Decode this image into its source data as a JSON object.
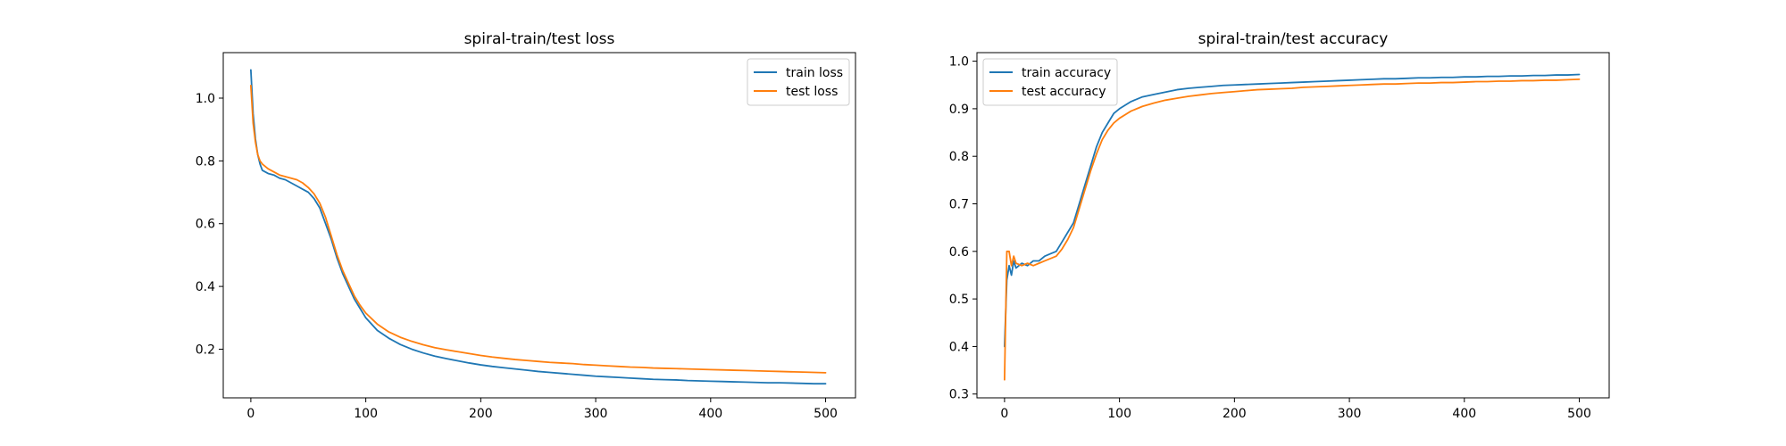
{
  "colors": {
    "train": "#1f77b4",
    "test": "#ff7f0e"
  },
  "chart_data": [
    {
      "type": "line",
      "title": "spiral-train/test loss",
      "xlabel": "",
      "ylabel": "",
      "xlim": [
        -24,
        526
      ],
      "ylim": [
        0.045,
        1.145
      ],
      "xticks": [
        0,
        100,
        200,
        300,
        400,
        500
      ],
      "yticks": [
        0.2,
        0.4,
        0.6,
        0.8,
        1.0
      ],
      "ytick_format": 1,
      "grid": false,
      "legend": "top-right",
      "series": [
        {
          "name": "train loss",
          "color": "#1f77b4",
          "x": [
            0,
            2,
            4,
            6,
            8,
            10,
            15,
            20,
            25,
            30,
            35,
            40,
            45,
            50,
            55,
            60,
            65,
            70,
            75,
            80,
            85,
            90,
            95,
            100,
            110,
            120,
            130,
            140,
            150,
            160,
            170,
            180,
            190,
            200,
            210,
            220,
            230,
            240,
            250,
            260,
            270,
            280,
            290,
            300,
            310,
            320,
            330,
            340,
            350,
            360,
            370,
            380,
            390,
            400,
            410,
            420,
            430,
            440,
            450,
            460,
            470,
            480,
            490,
            500
          ],
          "y": [
            1.09,
            0.95,
            0.87,
            0.82,
            0.79,
            0.77,
            0.76,
            0.755,
            0.745,
            0.74,
            0.73,
            0.72,
            0.71,
            0.7,
            0.68,
            0.65,
            0.6,
            0.55,
            0.49,
            0.44,
            0.4,
            0.36,
            0.33,
            0.3,
            0.26,
            0.235,
            0.215,
            0.2,
            0.188,
            0.178,
            0.17,
            0.163,
            0.156,
            0.15,
            0.145,
            0.141,
            0.137,
            0.133,
            0.129,
            0.126,
            0.123,
            0.12,
            0.117,
            0.114,
            0.112,
            0.11,
            0.108,
            0.106,
            0.104,
            0.103,
            0.102,
            0.1,
            0.099,
            0.098,
            0.097,
            0.096,
            0.095,
            0.094,
            0.093,
            0.093,
            0.092,
            0.091,
            0.09,
            0.09
          ]
        },
        {
          "name": "test loss",
          "color": "#ff7f0e",
          "x": [
            0,
            2,
            4,
            6,
            8,
            10,
            15,
            20,
            25,
            30,
            35,
            40,
            45,
            50,
            55,
            60,
            65,
            70,
            75,
            80,
            85,
            90,
            95,
            100,
            110,
            120,
            130,
            140,
            150,
            160,
            170,
            180,
            190,
            200,
            210,
            220,
            230,
            240,
            250,
            260,
            270,
            280,
            290,
            300,
            310,
            320,
            330,
            340,
            350,
            360,
            370,
            380,
            390,
            400,
            410,
            420,
            430,
            440,
            450,
            460,
            470,
            480,
            490,
            500
          ],
          "y": [
            1.04,
            0.92,
            0.86,
            0.82,
            0.8,
            0.79,
            0.775,
            0.765,
            0.755,
            0.75,
            0.745,
            0.74,
            0.73,
            0.715,
            0.695,
            0.665,
            0.62,
            0.56,
            0.5,
            0.45,
            0.41,
            0.37,
            0.34,
            0.315,
            0.28,
            0.255,
            0.238,
            0.225,
            0.214,
            0.205,
            0.198,
            0.192,
            0.186,
            0.18,
            0.175,
            0.171,
            0.167,
            0.164,
            0.161,
            0.158,
            0.156,
            0.154,
            0.151,
            0.149,
            0.147,
            0.145,
            0.143,
            0.142,
            0.14,
            0.139,
            0.138,
            0.137,
            0.136,
            0.135,
            0.134,
            0.133,
            0.132,
            0.131,
            0.13,
            0.129,
            0.128,
            0.127,
            0.126,
            0.125
          ]
        }
      ]
    },
    {
      "type": "line",
      "title": "spiral-train/test accuracy",
      "xlabel": "",
      "ylabel": "",
      "xlim": [
        -24,
        526
      ],
      "ylim": [
        0.292,
        1.018
      ],
      "xticks": [
        0,
        100,
        200,
        300,
        400,
        500
      ],
      "yticks": [
        0.3,
        0.4,
        0.5,
        0.6,
        0.7,
        0.8,
        0.9,
        1.0
      ],
      "ytick_format": 1,
      "grid": false,
      "legend": "top-left",
      "series": [
        {
          "name": "train accuracy",
          "color": "#1f77b4",
          "x": [
            0,
            2,
            4,
            6,
            8,
            10,
            15,
            20,
            25,
            30,
            35,
            40,
            45,
            50,
            55,
            60,
            65,
            70,
            75,
            80,
            85,
            90,
            95,
            100,
            110,
            120,
            130,
            140,
            150,
            160,
            170,
            180,
            190,
            200,
            210,
            220,
            230,
            240,
            250,
            260,
            270,
            280,
            290,
            300,
            310,
            320,
            330,
            340,
            350,
            360,
            370,
            380,
            390,
            400,
            410,
            420,
            430,
            440,
            450,
            460,
            470,
            480,
            490,
            500
          ],
          "y": [
            0.4,
            0.54,
            0.57,
            0.55,
            0.58,
            0.565,
            0.575,
            0.57,
            0.58,
            0.58,
            0.59,
            0.595,
            0.6,
            0.62,
            0.64,
            0.66,
            0.7,
            0.74,
            0.78,
            0.82,
            0.85,
            0.87,
            0.89,
            0.9,
            0.915,
            0.925,
            0.93,
            0.935,
            0.94,
            0.943,
            0.945,
            0.947,
            0.949,
            0.95,
            0.951,
            0.952,
            0.953,
            0.954,
            0.955,
            0.956,
            0.957,
            0.958,
            0.959,
            0.96,
            0.961,
            0.962,
            0.963,
            0.963,
            0.964,
            0.965,
            0.965,
            0.966,
            0.966,
            0.967,
            0.967,
            0.968,
            0.968,
            0.969,
            0.969,
            0.97,
            0.97,
            0.971,
            0.971,
            0.972
          ]
        },
        {
          "name": "test accuracy",
          "color": "#ff7f0e",
          "x": [
            0,
            2,
            4,
            6,
            8,
            10,
            15,
            20,
            25,
            30,
            35,
            40,
            45,
            50,
            55,
            60,
            65,
            70,
            75,
            80,
            85,
            90,
            95,
            100,
            110,
            120,
            130,
            140,
            150,
            160,
            170,
            180,
            190,
            200,
            210,
            220,
            230,
            240,
            250,
            260,
            270,
            280,
            290,
            300,
            310,
            320,
            330,
            340,
            350,
            360,
            370,
            380,
            390,
            400,
            410,
            420,
            430,
            440,
            450,
            460,
            470,
            480,
            490,
            500
          ],
          "y": [
            0.33,
            0.6,
            0.6,
            0.57,
            0.59,
            0.575,
            0.57,
            0.575,
            0.57,
            0.575,
            0.58,
            0.585,
            0.59,
            0.605,
            0.625,
            0.65,
            0.69,
            0.73,
            0.77,
            0.805,
            0.835,
            0.855,
            0.87,
            0.88,
            0.895,
            0.905,
            0.912,
            0.918,
            0.922,
            0.926,
            0.929,
            0.932,
            0.934,
            0.936,
            0.938,
            0.94,
            0.941,
            0.942,
            0.943,
            0.945,
            0.946,
            0.947,
            0.948,
            0.949,
            0.95,
            0.951,
            0.952,
            0.952,
            0.953,
            0.954,
            0.954,
            0.955,
            0.955,
            0.956,
            0.957,
            0.957,
            0.958,
            0.958,
            0.959,
            0.959,
            0.96,
            0.96,
            0.961,
            0.962
          ]
        }
      ]
    }
  ]
}
